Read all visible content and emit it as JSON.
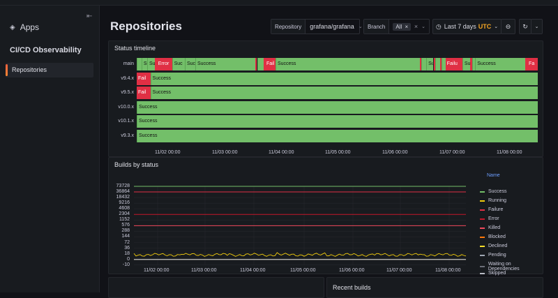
{
  "sidebar": {
    "collapse_icon": "collapse-icon",
    "apps_label": "Apps",
    "section": "CI/CD Observability",
    "active_item": "Repositories"
  },
  "header": {
    "title": "Repositories",
    "repository_label": "Repository",
    "repository_value": "grafana/grafana",
    "branch_label": "Branch",
    "branch_chip": "All",
    "time_range": "Last 7 days",
    "timezone": "UTC"
  },
  "status_timeline": {
    "title": "Status timeline",
    "rows": [
      {
        "label": "main",
        "segments": [
          {
            "s": 0.0,
            "w": 0.012,
            "t": "s",
            "text": ""
          },
          {
            "s": 0.012,
            "w": 0.014,
            "t": "s",
            "text": "Su"
          },
          {
            "s": 0.026,
            "w": 0.02,
            "t": "s",
            "text": "Suc"
          },
          {
            "s": 0.046,
            "w": 0.004,
            "t": "f",
            "text": ""
          },
          {
            "s": 0.05,
            "w": 0.038,
            "t": "f",
            "text": "Error"
          },
          {
            "s": 0.088,
            "w": 0.032,
            "t": "s",
            "text": "Suc"
          },
          {
            "s": 0.12,
            "w": 0.026,
            "t": "s",
            "text": "Suc"
          },
          {
            "s": 0.146,
            "w": 0.15,
            "t": "s",
            "text": "Success"
          },
          {
            "s": 0.296,
            "w": 0.004,
            "t": "f",
            "text": ""
          },
          {
            "s": 0.3,
            "w": 0.016,
            "t": "s",
            "text": ""
          },
          {
            "s": 0.316,
            "w": 0.004,
            "t": "f",
            "text": ""
          },
          {
            "s": 0.32,
            "w": 0.026,
            "t": "f",
            "text": "Fail"
          },
          {
            "s": 0.346,
            "w": 0.36,
            "t": "s",
            "text": "Success"
          },
          {
            "s": 0.706,
            "w": 0.004,
            "t": "f",
            "text": ""
          },
          {
            "s": 0.71,
            "w": 0.012,
            "t": "s",
            "text": ""
          },
          {
            "s": 0.722,
            "w": 0.018,
            "t": "s",
            "text": "Su"
          },
          {
            "s": 0.74,
            "w": 0.004,
            "t": "f",
            "text": ""
          },
          {
            "s": 0.744,
            "w": 0.012,
            "t": "s",
            "text": ""
          },
          {
            "s": 0.756,
            "w": 0.004,
            "t": "f",
            "text": ""
          },
          {
            "s": 0.76,
            "w": 0.01,
            "t": "s",
            "text": ""
          },
          {
            "s": 0.77,
            "w": 0.042,
            "t": "f",
            "text": "Failu"
          },
          {
            "s": 0.812,
            "w": 0.02,
            "t": "s",
            "text": "Su"
          },
          {
            "s": 0.832,
            "w": 0.004,
            "t": "f",
            "text": ""
          },
          {
            "s": 0.836,
            "w": 0.008,
            "t": "s",
            "text": ""
          },
          {
            "s": 0.844,
            "w": 0.124,
            "t": "s",
            "text": "Success"
          },
          {
            "s": 0.968,
            "w": 0.006,
            "t": "f",
            "text": ""
          },
          {
            "s": 0.974,
            "w": 0.026,
            "t": "f",
            "text": "Fa"
          }
        ]
      },
      {
        "label": "v9.4.x",
        "segments": [
          {
            "s": 0.0,
            "w": 0.034,
            "t": "f",
            "text": "Fail"
          },
          {
            "s": 0.034,
            "w": 0.966,
            "t": "s",
            "text": "Success"
          }
        ]
      },
      {
        "label": "v9.5.x",
        "segments": [
          {
            "s": 0.0,
            "w": 0.034,
            "t": "f",
            "text": "Fail"
          },
          {
            "s": 0.034,
            "w": 0.966,
            "t": "s",
            "text": "Success"
          }
        ]
      },
      {
        "label": "v10.0.x",
        "segments": [
          {
            "s": 0.0,
            "w": 1.0,
            "t": "s",
            "text": "Success"
          }
        ]
      },
      {
        "label": "v10.1.x",
        "segments": [
          {
            "s": 0.0,
            "w": 1.0,
            "t": "s",
            "text": "Success"
          }
        ]
      },
      {
        "label": "v9.3.x",
        "segments": [
          {
            "s": 0.0,
            "w": 1.0,
            "t": "s",
            "text": "Success"
          }
        ]
      }
    ],
    "x_ticks": [
      "11/02 00:00",
      "11/03 00:00",
      "11/04 00:00",
      "11/05 00:00",
      "11/06 00:00",
      "11/07 00:00",
      "11/08 00:00"
    ]
  },
  "chart_data": {
    "type": "line",
    "title": "Builds by status",
    "y_scale": "log",
    "y_ticks": [
      "73728",
      "36864",
      "18432",
      "9216",
      "4608",
      "2304",
      "1152",
      "576",
      "288",
      "144",
      "72",
      "36",
      "18",
      "0",
      "-10"
    ],
    "x_ticks": [
      "11/02 00:00",
      "11/03 00:00",
      "11/04 00:00",
      "11/05 00:00",
      "11/06 00:00",
      "11/07 00:00",
      "11/08 00:00"
    ],
    "legend_title": "Name",
    "legend_placement": "right",
    "series": [
      {
        "name": "Success",
        "color": "#73bf69",
        "level": 73728
      },
      {
        "name": "Running",
        "color": "#f2cc0c",
        "level": 18
      },
      {
        "name": "Failure",
        "color": "#e02f44",
        "level": 36864
      },
      {
        "name": "Error",
        "color": "#c4162a",
        "level": 2304
      },
      {
        "name": "Killed",
        "color": "#f2495c",
        "level": 576
      },
      {
        "name": "Blocked",
        "color": "#ff780a",
        "level": 0
      },
      {
        "name": "Declined",
        "color": "#fade2a",
        "level": 0
      },
      {
        "name": "Pending",
        "color": "#9fa7b3",
        "level": 0
      },
      {
        "name": "Waiting on Dependencies",
        "color": "#6c6f78",
        "level": 0
      },
      {
        "name": "Skipped",
        "color": "#b9bbc4",
        "level": 0
      }
    ]
  },
  "bottom": {
    "recent_builds_title": "Recent builds"
  }
}
